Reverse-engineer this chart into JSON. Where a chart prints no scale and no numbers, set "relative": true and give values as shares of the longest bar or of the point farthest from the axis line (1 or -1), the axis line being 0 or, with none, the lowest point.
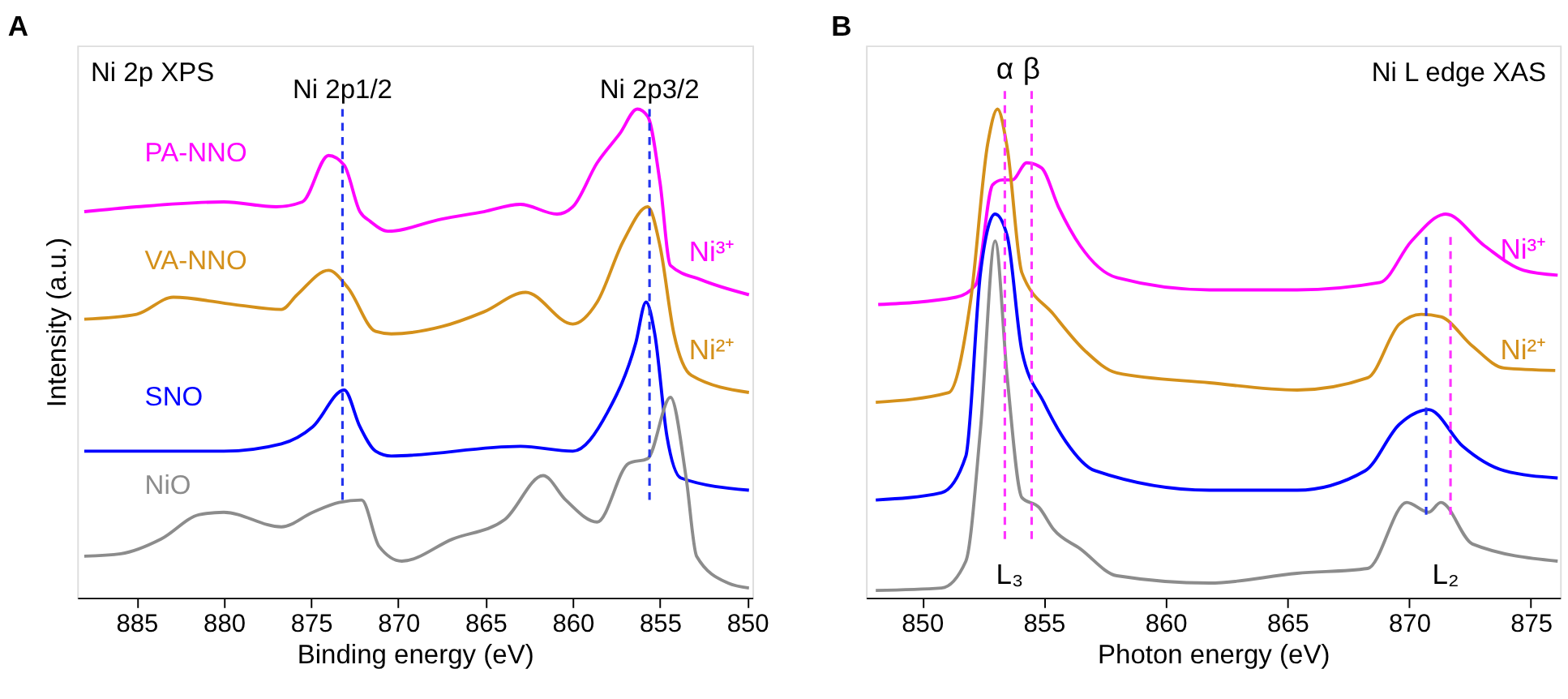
{
  "chart_data": [
    {
      "type": "line",
      "title": "A",
      "xlabel": "Binding energy (eV)",
      "ylabel": "Intensity (a.u.)",
      "relative": true,
      "xlim": [
        888.4,
        849.7
      ],
      "xticks": [
        885,
        880,
        875,
        870,
        865,
        860,
        855,
        850
      ],
      "series": [
        {
          "name": "PA-NNO",
          "color": "#ff00ff",
          "x": [
            888,
            885,
            880,
            877,
            875.5,
            874.0,
            873.1,
            872.2,
            871.6,
            870.6,
            867.5,
            865.1,
            863.0,
            860.9,
            860.0,
            858.6,
            857.3,
            856.3,
            855.7,
            855.0,
            854.4,
            852.6,
            849.9
          ],
          "values": [
            0.79,
            0.8,
            0.81,
            0.8,
            0.81,
            0.905,
            0.885,
            0.79,
            0.77,
            0.75,
            0.775,
            0.79,
            0.805,
            0.785,
            0.8,
            0.89,
            0.95,
            1.0,
            0.985,
            0.85,
            0.68,
            0.65,
            0.62
          ]
        },
        {
          "name": "VA-NNO",
          "color": "#d4901a",
          "x": [
            888,
            885,
            882.9,
            879.4,
            876.7,
            875.8,
            874.0,
            872.9,
            871.3,
            870.4,
            867.5,
            865.1,
            862.7,
            860.0,
            858.6,
            857.1,
            855.7,
            855.0,
            854.2,
            853.2,
            849.9
          ],
          "values": [
            0.57,
            0.58,
            0.615,
            0.6,
            0.59,
            0.62,
            0.67,
            0.635,
            0.545,
            0.54,
            0.555,
            0.585,
            0.625,
            0.56,
            0.605,
            0.73,
            0.8,
            0.72,
            0.54,
            0.455,
            0.42
          ]
        },
        {
          "name": "SNO",
          "color": "#0000ff",
          "x": [
            888,
            880,
            876.7,
            874.9,
            873.1,
            872.2,
            871.3,
            870.4,
            863.0,
            860.0,
            858.0,
            856.4,
            855.8,
            855.3,
            854.6,
            853.8,
            849.9
          ],
          "values": [
            0.3,
            0.3,
            0.315,
            0.35,
            0.425,
            0.35,
            0.3,
            0.29,
            0.31,
            0.3,
            0.38,
            0.52,
            0.605,
            0.54,
            0.33,
            0.245,
            0.22
          ]
        },
        {
          "name": "NiO",
          "color": "#8c8c8c",
          "x": [
            888,
            885.9,
            883.6,
            881.4,
            880.0,
            876.7,
            874.9,
            873.4,
            872.1,
            871.1,
            869.8,
            866.9,
            863.9,
            861.7,
            860.4,
            858.6,
            856.8,
            855.7,
            854.4,
            853.5,
            852.9,
            851.1,
            849.9
          ],
          "values": [
            0.085,
            0.09,
            0.12,
            0.17,
            0.175,
            0.145,
            0.175,
            0.195,
            0.2,
            0.105,
            0.075,
            0.12,
            0.16,
            0.25,
            0.2,
            0.155,
            0.275,
            0.285,
            0.41,
            0.245,
            0.085,
            0.03,
            0.02
          ]
        }
      ],
      "ref_lines": [
        {
          "axis": "x",
          "value": 873.2,
          "label": "Ni 2p1/2",
          "color": "#2233ee",
          "line_style": "dashed"
        },
        {
          "axis": "x",
          "value": 855.6,
          "label": "Ni 2p3/2",
          "color": "#2233ee",
          "line_style": "dashed"
        }
      ],
      "annotations": [
        "Ni 2p XPS",
        "Ni³⁺",
        "Ni²⁺"
      ]
    },
    {
      "type": "line",
      "title": "B",
      "xlabel": "Photon energy (eV)",
      "relative": true,
      "xlim": [
        847.7,
        876.2
      ],
      "xticks": [
        850,
        855,
        860,
        865,
        870,
        875
      ],
      "series": [
        {
          "color": "#ff00ff",
          "x": [
            848.2,
            851.4,
            852.2,
            852.9,
            853.3,
            853.7,
            854.3,
            854.9,
            855.6,
            856.5,
            858.0,
            861.8,
            865.4,
            868.8,
            870.1,
            871.5,
            873.1,
            874.7,
            876.1
          ],
          "values": [
            0.6,
            0.615,
            0.64,
            0.845,
            0.855,
            0.855,
            0.89,
            0.88,
            0.8,
            0.72,
            0.655,
            0.63,
            0.63,
            0.645,
            0.73,
            0.785,
            0.72,
            0.67,
            0.66
          ]
        },
        {
          "color": "#d4901a",
          "x": [
            848.1,
            851.1,
            852.0,
            852.7,
            853.1,
            853.5,
            854.1,
            855.4,
            856.7,
            858.0,
            861.8,
            865.4,
            868.3,
            869.6,
            870.5,
            871.3,
            872.6,
            873.9,
            876.0
          ],
          "values": [
            0.4,
            0.42,
            0.61,
            0.93,
            1.0,
            0.92,
            0.665,
            0.58,
            0.505,
            0.46,
            0.44,
            0.425,
            0.45,
            0.56,
            0.58,
            0.575,
            0.515,
            0.47,
            0.465
          ]
        },
        {
          "color": "#0000ff",
          "x": [
            848.1,
            850.8,
            851.8,
            852.4,
            853.0,
            853.5,
            854.1,
            855.0,
            855.9,
            857.1,
            861.8,
            865.4,
            868.2,
            869.6,
            870.8,
            872.2,
            873.9,
            876.1
          ],
          "values": [
            0.2,
            0.215,
            0.29,
            0.665,
            0.785,
            0.74,
            0.505,
            0.4,
            0.32,
            0.26,
            0.22,
            0.22,
            0.26,
            0.355,
            0.385,
            0.31,
            0.26,
            0.245
          ]
        },
        {
          "color": "#8c8c8c",
          "x": [
            848.1,
            850.8,
            851.8,
            852.4,
            853.0,
            853.5,
            854.1,
            854.8,
            855.4,
            856.5,
            858.0,
            861.8,
            865.4,
            868.3,
            869.9,
            870.8,
            871.3,
            872.6,
            876.1
          ],
          "values": [
            0.015,
            0.02,
            0.075,
            0.345,
            0.73,
            0.45,
            0.205,
            0.185,
            0.14,
            0.1,
            0.045,
            0.03,
            0.05,
            0.06,
            0.195,
            0.175,
            0.195,
            0.11,
            0.075
          ]
        }
      ],
      "ref_lines": [
        {
          "axis": "x",
          "value": 853.4,
          "label": "α",
          "color": "#ff33ff",
          "line_style": "dashed"
        },
        {
          "axis": "x",
          "value": 854.5,
          "label": "β",
          "color": "#ff33ff",
          "line_style": "dashed"
        },
        {
          "axis": "x",
          "value": 870.7,
          "color": "#2233ee",
          "line_style": "dashed"
        },
        {
          "axis": "x",
          "value": 871.7,
          "color": "#ff33ff",
          "line_style": "dashed"
        }
      ],
      "annotations": [
        "Ni L edge XAS",
        "Ni³⁺",
        "Ni²⁺",
        "L₃",
        "L₂"
      ]
    }
  ]
}
